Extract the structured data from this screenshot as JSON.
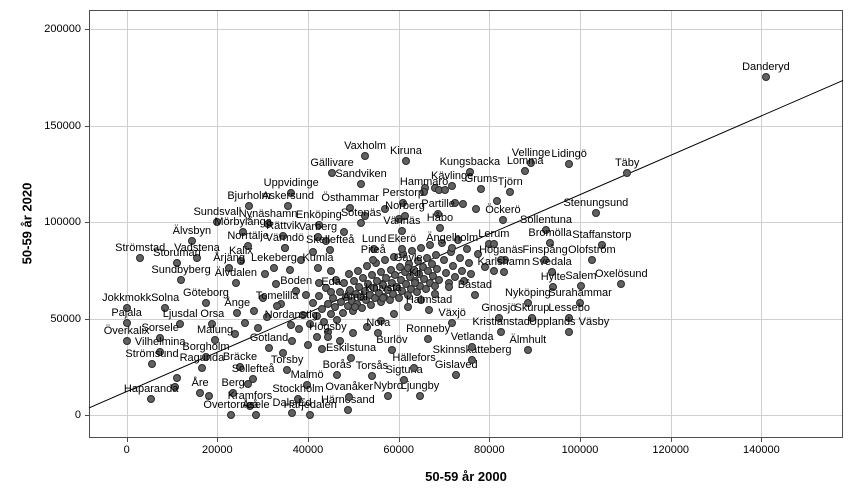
{
  "chart_data": {
    "type": "scatter",
    "xlabel": "50-59 år 2000",
    "ylabel": "50-59 år 2020",
    "x_ticks": [
      0,
      20000,
      40000,
      60000,
      80000,
      100000,
      120000,
      140000
    ],
    "y_ticks": [
      0,
      50000,
      100000,
      150000,
      200000
    ],
    "xlim": [
      -8300,
      158000
    ],
    "ylim": [
      -11800,
      210000
    ],
    "grid": true,
    "legend": "none",
    "marker_color": "#616161",
    "marker_edge_color": "#2b2b2b",
    "gridline_color": "#cfcfcf",
    "ref_line": {
      "x1": -8300,
      "y1": 3800,
      "x2": 158000,
      "y2": 173500
    },
    "points": [
      {
        "name": "Danderyd",
        "x": 141000,
        "y": 175500
      },
      {
        "name": "Täby",
        "x": 110400,
        "y": 125700
      },
      {
        "name": "Lidingö",
        "x": 97600,
        "y": 130300
      },
      {
        "name": "Vellinge",
        "x": 89200,
        "y": 130900
      },
      {
        "name": "Lomma",
        "x": 87900,
        "y": 126700
      },
      {
        "name": "Kungsbacka",
        "x": 75700,
        "y": 126200
      },
      {
        "name": "Kävlinge",
        "x": 71800,
        "y": 118900
      },
      {
        "name": "Grums",
        "x": 78200,
        "y": 117400
      },
      {
        "name": "Tjörn",
        "x": 84600,
        "y": 115800
      },
      {
        "name": "Vaxholm",
        "x": 52600,
        "y": 134500
      },
      {
        "name": "Kiruna",
        "x": 61600,
        "y": 131900
      },
      {
        "name": "Gällivare",
        "x": 45300,
        "y": 125700
      },
      {
        "name": "Sandviken",
        "x": 51700,
        "y": 120000
      },
      {
        "name": "Hammarö",
        "x": 65600,
        "y": 115800
      },
      {
        "name": "Perstorp",
        "x": 61000,
        "y": 110100
      },
      {
        "name": "Norberg",
        "x": 61400,
        "y": 103400
      },
      {
        "name": "Partille",
        "x": 68700,
        "y": 104400
      },
      {
        "name": "Håbo",
        "x": 69100,
        "y": 97100
      },
      {
        "name": "Vännäs",
        "x": 60700,
        "y": 95600
      },
      {
        "name": "Öckerö",
        "x": 83000,
        "y": 101300
      },
      {
        "name": "Sollentuna",
        "x": 92500,
        "y": 96100
      },
      {
        "name": "Stenungsund",
        "x": 103500,
        "y": 104900
      },
      {
        "name": "Uppvidinge",
        "x": 36300,
        "y": 115300
      },
      {
        "name": "Bjurholm",
        "x": 27000,
        "y": 108500
      },
      {
        "name": "Askersund",
        "x": 35600,
        "y": 108500
      },
      {
        "name": "Östhammar",
        "x": 49300,
        "y": 107500
      },
      {
        "name": "Sundsvall",
        "x": 20000,
        "y": 100200
      },
      {
        "name": "Nynäshamn",
        "x": 31200,
        "y": 99200
      },
      {
        "name": "Enköping",
        "x": 42400,
        "y": 98700
      },
      {
        "name": "Sotenäs",
        "x": 51700,
        "y": 99700
      },
      {
        "name": "Mörbylånga",
        "x": 25700,
        "y": 95100
      },
      {
        "name": "Rättvik",
        "x": 34500,
        "y": 93000
      },
      {
        "name": "Varberg",
        "x": 42200,
        "y": 92500
      },
      {
        "name": "Älvsbyn",
        "x": 14400,
        "y": 90400
      },
      {
        "name": "Norrtälje",
        "x": 26800,
        "y": 87800
      },
      {
        "name": "Värmdö",
        "x": 34900,
        "y": 86800
      },
      {
        "name": "Skellefteå",
        "x": 44900,
        "y": 85700
      },
      {
        "name": "Strömstad",
        "x": 3000,
        "y": 81600
      },
      {
        "name": "Vadstena",
        "x": 15500,
        "y": 81600
      },
      {
        "name": "Lund",
        "x": 54600,
        "y": 86200
      },
      {
        "name": "Ekerö",
        "x": 60700,
        "y": 86200
      },
      {
        "name": "Ängelholm",
        "x": 71800,
        "y": 86800
      },
      {
        "name": "Lerum",
        "x": 81000,
        "y": 88800
      },
      {
        "name": "Bromölla",
        "x": 93400,
        "y": 89400
      },
      {
        "name": "Staffanstorp",
        "x": 104800,
        "y": 88300
      },
      {
        "name": "Storuman",
        "x": 11100,
        "y": 79000
      },
      {
        "name": "Kalix",
        "x": 25200,
        "y": 80000
      },
      {
        "name": "Höganäs",
        "x": 82600,
        "y": 80500
      },
      {
        "name": "Finspång",
        "x": 92300,
        "y": 80500
      },
      {
        "name": "Olofström",
        "x": 102600,
        "y": 80500
      },
      {
        "name": "Årjäng",
        "x": 22600,
        "y": 76400
      },
      {
        "name": "Lekeberg",
        "x": 32500,
        "y": 76400
      },
      {
        "name": "Kumla",
        "x": 42200,
        "y": 76400
      },
      {
        "name": "Karlshamn",
        "x": 83200,
        "y": 74300
      },
      {
        "name": "Svedala",
        "x": 93800,
        "y": 74300
      },
      {
        "name": "Sundbyberg",
        "x": 12000,
        "y": 70200
      },
      {
        "name": "Älvdalen",
        "x": 24100,
        "y": 68600
      },
      {
        "name": "Hylte",
        "x": 94100,
        "y": 66600
      },
      {
        "name": "Salem",
        "x": 100200,
        "y": 67100
      },
      {
        "name": "Oxelösund",
        "x": 109100,
        "y": 68100
      },
      {
        "name": "Piteå",
        "x": 54400,
        "y": 80500
      },
      {
        "name": "Gävle",
        "x": 62100,
        "y": 76400
      },
      {
        "name": "Boden",
        "x": 37400,
        "y": 64500
      },
      {
        "name": "Eda",
        "x": 45100,
        "y": 64000
      },
      {
        "name": "Kil",
        "x": 63600,
        "y": 68600
      },
      {
        "name": "Knivsta",
        "x": 56600,
        "y": 60800
      },
      {
        "name": "Åmål",
        "x": 50400,
        "y": 56200
      },
      {
        "name": "Tomelilla",
        "x": 33200,
        "y": 56700
      },
      {
        "name": "Nordanstig",
        "x": 36300,
        "y": 46800
      },
      {
        "name": "Göteborg",
        "x": 17500,
        "y": 58300
      },
      {
        "name": "Jokkmokk",
        "x": 0,
        "y": 55700
      },
      {
        "name": "Solna",
        "x": 8500,
        "y": 55700
      },
      {
        "name": "Ånge",
        "x": 24400,
        "y": 53100
      },
      {
        "name": "Pajala",
        "x": 0,
        "y": 47900
      },
      {
        "name": "Ljusdal",
        "x": 11800,
        "y": 47400
      },
      {
        "name": "Orsa",
        "x": 18900,
        "y": 47400
      },
      {
        "name": "Överkalix",
        "x": 0,
        "y": 38500
      },
      {
        "name": "Sorsele",
        "x": 7400,
        "y": 40100
      },
      {
        "name": "Malung",
        "x": 19500,
        "y": 39100
      },
      {
        "name": "Vilhelmina",
        "x": 7400,
        "y": 32800
      },
      {
        "name": "Borgholm",
        "x": 17500,
        "y": 30200
      },
      {
        "name": "Strömsund",
        "x": 5600,
        "y": 26600
      },
      {
        "name": "Ragunda",
        "x": 16600,
        "y": 24500
      },
      {
        "name": "Bräcke",
        "x": 25000,
        "y": 25100
      },
      {
        "name": "Gotland",
        "x": 31400,
        "y": 34900
      },
      {
        "name": "Torsby",
        "x": 35400,
        "y": 23500
      },
      {
        "name": "Sollefteå",
        "x": 27900,
        "y": 18800
      },
      {
        "name": "Malmö",
        "x": 39800,
        "y": 15700
      },
      {
        "name": "Åre",
        "x": 16200,
        "y": 11600
      },
      {
        "name": "Berg",
        "x": 23500,
        "y": 11600
      },
      {
        "name": "Stockholm",
        "x": 37800,
        "y": 8400
      },
      {
        "name": "Kramfors",
        "x": 27200,
        "y": 4800
      },
      {
        "name": "Haparanda",
        "x": 5400,
        "y": 8400
      },
      {
        "name": "Övertorneå",
        "x": 23000,
        "y": 0
      },
      {
        "name": "Åsele",
        "x": 28500,
        "y": 0
      },
      {
        "name": "Dals-Ed",
        "x": 36500,
        "y": 1200
      },
      {
        "name": "Härjedalen",
        "x": 40500,
        "y": 0
      },
      {
        "name": "Härnösand",
        "x": 48800,
        "y": 2700
      },
      {
        "name": "Ovanåker",
        "x": 49100,
        "y": 9500
      },
      {
        "name": "Nybro",
        "x": 57700,
        "y": 10000
      },
      {
        "name": "Ljungby",
        "x": 64700,
        "y": 10000
      },
      {
        "name": "Borås",
        "x": 46400,
        "y": 20900
      },
      {
        "name": "Torsås",
        "x": 54100,
        "y": 20400
      },
      {
        "name": "Sigtuna",
        "x": 61200,
        "y": 18300
      },
      {
        "name": "Eskilstuna",
        "x": 49500,
        "y": 29700
      },
      {
        "name": "Hällefors",
        "x": 63400,
        "y": 24500
      },
      {
        "name": "Gislaved",
        "x": 72700,
        "y": 20900
      },
      {
        "name": "Skinnskatteberg",
        "x": 76200,
        "y": 28700
      },
      {
        "name": "Vetlanda",
        "x": 76200,
        "y": 35400
      },
      {
        "name": "Ronneby",
        "x": 66500,
        "y": 39600
      },
      {
        "name": "Växjö",
        "x": 71800,
        "y": 47900
      },
      {
        "name": "Burlöv",
        "x": 58500,
        "y": 33900
      },
      {
        "name": "Nora",
        "x": 55500,
        "y": 42700
      },
      {
        "name": "Högsby",
        "x": 44400,
        "y": 40600
      },
      {
        "name": "Halmstad",
        "x": 66700,
        "y": 54600
      },
      {
        "name": "Båstad",
        "x": 76800,
        "y": 62400
      },
      {
        "name": "Nyköping",
        "x": 88500,
        "y": 58300
      },
      {
        "name": "Surahammar",
        "x": 100000,
        "y": 58300
      },
      {
        "name": "Gnosjö",
        "x": 82100,
        "y": 50400
      },
      {
        "name": "Skurup",
        "x": 89400,
        "y": 50400
      },
      {
        "name": "Lessebo",
        "x": 97600,
        "y": 50400
      },
      {
        "name": "Kristianstad",
        "x": 82600,
        "y": 43200
      },
      {
        "name": "Upplands Väsby",
        "x": 97600,
        "y": 43200
      },
      {
        "name": "Älmhult",
        "x": 88500,
        "y": 33900
      }
    ],
    "unlabeled_points": [
      [
        39000,
        52000
      ],
      [
        40500,
        47500
      ],
      [
        41000,
        58000
      ],
      [
        42000,
        51500
      ],
      [
        42500,
        62000
      ],
      [
        43000,
        55000
      ],
      [
        43500,
        48500
      ],
      [
        44000,
        66000
      ],
      [
        44500,
        57500
      ],
      [
        45000,
        52500
      ],
      [
        45500,
        61000
      ],
      [
        46000,
        56000
      ],
      [
        46200,
        70000
      ],
      [
        46500,
        49500
      ],
      [
        47000,
        64000
      ],
      [
        47300,
        58500
      ],
      [
        47800,
        53000
      ],
      [
        48000,
        68500
      ],
      [
        48300,
        61500
      ],
      [
        48800,
        56500
      ],
      [
        49000,
        73000
      ],
      [
        49300,
        65000
      ],
      [
        49600,
        59000
      ],
      [
        50000,
        54000
      ],
      [
        50200,
        69500
      ],
      [
        50500,
        63000
      ],
      [
        50800,
        57500
      ],
      [
        51000,
        75000
      ],
      [
        51300,
        66500
      ],
      [
        51600,
        61500
      ],
      [
        52000,
        55500
      ],
      [
        52200,
        71000
      ],
      [
        52500,
        64500
      ],
      [
        52800,
        59500
      ],
      [
        53000,
        77500
      ],
      [
        53300,
        68000
      ],
      [
        53600,
        62500
      ],
      [
        54000,
        57000
      ],
      [
        54200,
        72500
      ],
      [
        54500,
        66000
      ],
      [
        54800,
        60500
      ],
      [
        55000,
        79000
      ],
      [
        55300,
        69500
      ],
      [
        55600,
        63500
      ],
      [
        56000,
        58500
      ],
      [
        56200,
        74000
      ],
      [
        56500,
        67500
      ],
      [
        56800,
        61500
      ],
      [
        57000,
        80500
      ],
      [
        57300,
        71000
      ],
      [
        57600,
        65000
      ],
      [
        58000,
        59500
      ],
      [
        58200,
        75500
      ],
      [
        58500,
        68500
      ],
      [
        58800,
        63000
      ],
      [
        59000,
        82000
      ],
      [
        59300,
        72500
      ],
      [
        59600,
        66500
      ],
      [
        60000,
        61000
      ],
      [
        60200,
        77000
      ],
      [
        60500,
        70000
      ],
      [
        60800,
        64500
      ],
      [
        61000,
        83500
      ],
      [
        61300,
        74000
      ],
      [
        61600,
        68000
      ],
      [
        62000,
        62500
      ],
      [
        62200,
        78500
      ],
      [
        62500,
        71500
      ],
      [
        62800,
        65500
      ],
      [
        63000,
        85000
      ],
      [
        63300,
        75500
      ],
      [
        63600,
        69500
      ],
      [
        64000,
        64000
      ],
      [
        64200,
        80000
      ],
      [
        64500,
        73000
      ],
      [
        64800,
        67000
      ],
      [
        65000,
        86500
      ],
      [
        65300,
        77000
      ],
      [
        65600,
        70500
      ],
      [
        66000,
        65500
      ],
      [
        66200,
        81500
      ],
      [
        66500,
        74500
      ],
      [
        66800,
        68500
      ],
      [
        67000,
        88000
      ],
      [
        67300,
        78500
      ],
      [
        67600,
        72000
      ],
      [
        68000,
        67000
      ],
      [
        68200,
        83000
      ],
      [
        68500,
        76000
      ],
      [
        69000,
        70000
      ],
      [
        69500,
        89500
      ],
      [
        70000,
        80500
      ],
      [
        70500,
        73500
      ],
      [
        71000,
        68500
      ],
      [
        71500,
        84500
      ],
      [
        72000,
        77500
      ],
      [
        72500,
        71500
      ],
      [
        73000,
        91000
      ],
      [
        73500,
        81500
      ],
      [
        74000,
        75000
      ],
      [
        74500,
        69500
      ],
      [
        75000,
        86000
      ],
      [
        75500,
        79000
      ],
      [
        76000,
        73000
      ],
      [
        77500,
        83500
      ],
      [
        79000,
        77000
      ],
      [
        65800,
        117900
      ],
      [
        68000,
        117900
      ],
      [
        68900,
        116900
      ],
      [
        70200,
        116900
      ],
      [
        72400,
        110100
      ],
      [
        74200,
        109600
      ],
      [
        77100,
        107000
      ],
      [
        81700,
        111100
      ],
      [
        60000,
        101500
      ],
      [
        57000,
        107000
      ],
      [
        52500,
        103500
      ],
      [
        48000,
        95000
      ],
      [
        44000,
        90500
      ],
      [
        36000,
        75500
      ],
      [
        33000,
        68000
      ],
      [
        30000,
        60500
      ],
      [
        28000,
        54000
      ],
      [
        26000,
        48000
      ],
      [
        24000,
        42000
      ],
      [
        34000,
        57500
      ],
      [
        31000,
        51000
      ],
      [
        29000,
        45000
      ],
      [
        38000,
        44500
      ],
      [
        36500,
        38500
      ],
      [
        34500,
        32500
      ],
      [
        40000,
        36500
      ],
      [
        42000,
        40500
      ],
      [
        44500,
        43000
      ],
      [
        35000,
        86500
      ],
      [
        38500,
        80500
      ],
      [
        41000,
        84500
      ],
      [
        30500,
        73000
      ],
      [
        43000,
        34500
      ],
      [
        47000,
        38500
      ],
      [
        50000,
        42500
      ],
      [
        53000,
        45500
      ],
      [
        56000,
        49000
      ],
      [
        59000,
        52500
      ],
      [
        62000,
        56000
      ],
      [
        65000,
        59500
      ],
      [
        68000,
        63000
      ],
      [
        71000,
        66500
      ],
      [
        45000,
        74500
      ],
      [
        42500,
        68500
      ],
      [
        39500,
        62500
      ],
      [
        80000,
        88500
      ],
      [
        83500,
        80500
      ],
      [
        81000,
        74500
      ],
      [
        10700,
        14800
      ],
      [
        18200,
        10000
      ],
      [
        26800,
        16200
      ],
      [
        11100,
        19300
      ]
    ]
  }
}
